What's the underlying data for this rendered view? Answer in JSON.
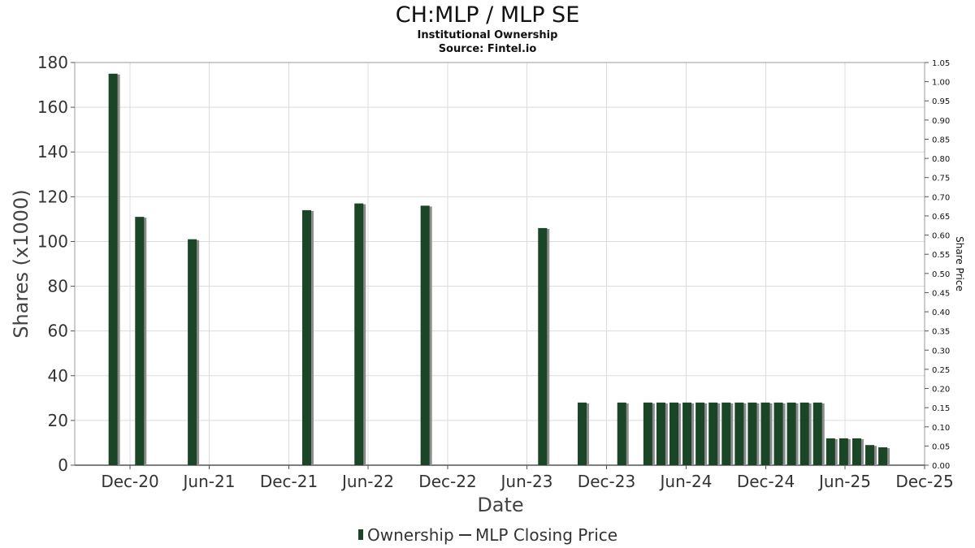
{
  "chart_data": {
    "type": "bar",
    "title": "CH:MLP / MLP SE",
    "subtitle_lines": [
      "Institutional Ownership",
      "Source: Fintel.io"
    ],
    "xlabel": "Date",
    "ylabel": "Shares (x1000)",
    "ylabel_right": "Share Price",
    "ylim": [
      0,
      180
    ],
    "ylim_right": [
      0,
      1.05
    ],
    "y_ticks": [
      "0",
      "20",
      "40",
      "60",
      "80",
      "100",
      "120",
      "140",
      "160",
      "180"
    ],
    "y_ticks_right": [
      "0.00",
      "0.05",
      "0.10",
      "0.15",
      "0.20",
      "0.25",
      "0.30",
      "0.35",
      "0.40",
      "0.45",
      "0.50",
      "0.55",
      "0.60",
      "0.65",
      "0.70",
      "0.75",
      "0.80",
      "0.85",
      "0.90",
      "0.95",
      "1.00",
      "1.05"
    ],
    "x_ticks": [
      "Dec-20",
      "Jun-21",
      "Dec-21",
      "Jun-22",
      "Dec-22",
      "Jun-23",
      "Dec-23",
      "Jun-24",
      "Dec-24",
      "Jun-25",
      "Dec-25"
    ],
    "x_tick_dates": [
      "2020-12-01",
      "2021-06-01",
      "2021-12-01",
      "2022-06-01",
      "2022-12-01",
      "2023-06-01",
      "2023-12-01",
      "2024-06-01",
      "2024-12-01",
      "2025-06-01",
      "2025-12-01"
    ],
    "xlim": [
      "2020-07-27",
      "2025-12-01"
    ],
    "grid": true,
    "legend_placement": "bottom-center",
    "colors": {
      "bar": "#1b4527",
      "bar_shadow": "#8c8c8c"
    },
    "series": [
      {
        "name": "Ownership",
        "points": [
          {
            "x": "2020-10-23",
            "y": 175
          },
          {
            "x": "2020-12-23",
            "y": 111
          },
          {
            "x": "2021-04-23",
            "y": 101
          },
          {
            "x": "2022-01-11",
            "y": 114
          },
          {
            "x": "2022-05-11",
            "y": 117
          },
          {
            "x": "2022-10-10",
            "y": 116
          },
          {
            "x": "2023-07-07",
            "y": 106
          },
          {
            "x": "2023-10-06",
            "y": 28
          },
          {
            "x": "2024-01-05",
            "y": 28
          },
          {
            "x": "2024-03-05",
            "y": 28
          },
          {
            "x": "2024-04-04",
            "y": 28
          },
          {
            "x": "2024-05-04",
            "y": 28
          },
          {
            "x": "2024-06-03",
            "y": 28
          },
          {
            "x": "2024-07-03",
            "y": 28
          },
          {
            "x": "2024-08-02",
            "y": 28
          },
          {
            "x": "2024-09-01",
            "y": 28
          },
          {
            "x": "2024-10-01",
            "y": 28
          },
          {
            "x": "2024-10-31",
            "y": 28
          },
          {
            "x": "2024-11-30",
            "y": 28
          },
          {
            "x": "2024-12-30",
            "y": 28
          },
          {
            "x": "2025-01-29",
            "y": 28
          },
          {
            "x": "2025-02-28",
            "y": 28
          },
          {
            "x": "2025-03-30",
            "y": 28
          },
          {
            "x": "2025-04-29",
            "y": 12
          },
          {
            "x": "2025-05-29",
            "y": 12
          },
          {
            "x": "2025-06-28",
            "y": 12
          },
          {
            "x": "2025-07-28",
            "y": 9
          },
          {
            "x": "2025-08-27",
            "y": 8
          }
        ]
      }
    ],
    "legend": [
      {
        "name": "Ownership",
        "kind": "bar"
      },
      {
        "name": "MLP Closing Price",
        "kind": "line"
      }
    ]
  }
}
